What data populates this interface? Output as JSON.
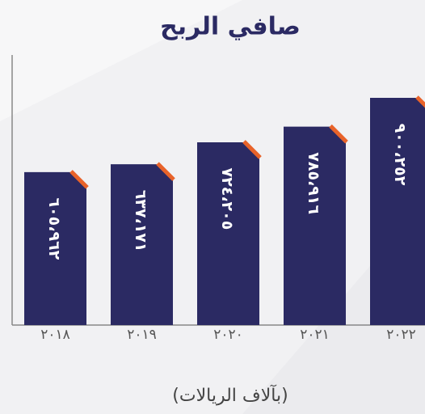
{
  "chart_data": {
    "type": "bar",
    "title": "صافي الربح",
    "subtitle": "(بآلاف الريالات)",
    "categories": [
      "٢٠١٨",
      "٢٠١٩",
      "٢٠٢٠",
      "٢٠٢١",
      "٢٠٢٢"
    ],
    "values": [
      605962,
      637171,
      724205,
      785916,
      900252
    ],
    "value_labels": [
      "٦٠٥،٩٦٢",
      "٦٣٧،١٧١",
      "٧٢٤،٢٠٥",
      "٧٨٥،٩١٦",
      "٩٠٠،٢٥٢"
    ],
    "color": "#2b2a63",
    "accent_color": "#e8632a",
    "ylim": [
      0,
      1070000
    ]
  }
}
